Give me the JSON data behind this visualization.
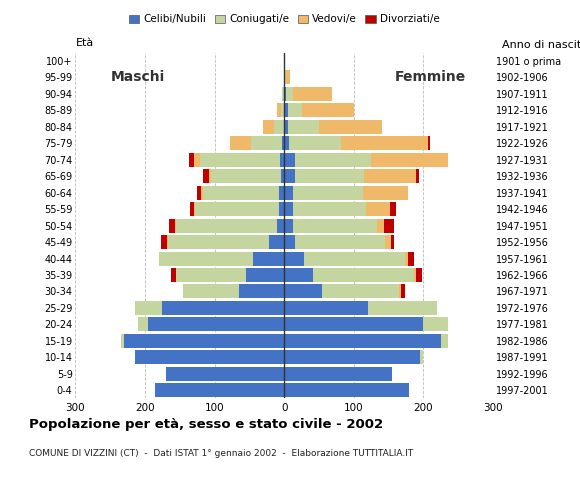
{
  "age_groups": [
    "0-4",
    "5-9",
    "10-14",
    "15-19",
    "20-24",
    "25-29",
    "30-34",
    "35-39",
    "40-44",
    "45-49",
    "50-54",
    "55-59",
    "60-64",
    "65-69",
    "70-74",
    "75-79",
    "80-84",
    "85-89",
    "90-94",
    "95-99",
    "100+"
  ],
  "birth_years": [
    "1997-2001",
    "1992-1996",
    "1987-1991",
    "1982-1986",
    "1977-1981",
    "1972-1976",
    "1967-1971",
    "1962-1966",
    "1957-1961",
    "1952-1956",
    "1947-1951",
    "1942-1946",
    "1937-1941",
    "1932-1936",
    "1927-1931",
    "1922-1926",
    "1917-1921",
    "1912-1916",
    "1907-1911",
    "1902-1906",
    "1901 o prima"
  ],
  "males": {
    "celibe": [
      185,
      170,
      215,
      230,
      195,
      175,
      65,
      55,
      45,
      22,
      10,
      8,
      7,
      5,
      6,
      3,
      0,
      0,
      0,
      0,
      0
    ],
    "coniugato": [
      0,
      0,
      0,
      5,
      15,
      40,
      80,
      100,
      135,
      145,
      145,
      120,
      110,
      100,
      115,
      45,
      15,
      5,
      3,
      0,
      0
    ],
    "vedovo": [
      0,
      0,
      0,
      0,
      0,
      0,
      0,
      0,
      0,
      2,
      2,
      2,
      3,
      3,
      8,
      30,
      15,
      5,
      0,
      0,
      0
    ],
    "divorziato": [
      0,
      0,
      0,
      0,
      0,
      0,
      0,
      8,
      0,
      8,
      8,
      5,
      5,
      8,
      8,
      0,
      0,
      0,
      0,
      0,
      0
    ]
  },
  "females": {
    "nubile": [
      180,
      155,
      195,
      225,
      200,
      120,
      55,
      42,
      28,
      15,
      13,
      12,
      13,
      15,
      15,
      7,
      5,
      5,
      3,
      0,
      0
    ],
    "coniugata": [
      0,
      0,
      5,
      10,
      35,
      100,
      110,
      145,
      145,
      130,
      120,
      105,
      100,
      100,
      110,
      75,
      45,
      20,
      10,
      3,
      0
    ],
    "vedova": [
      0,
      0,
      0,
      0,
      0,
      0,
      3,
      3,
      5,
      8,
      10,
      35,
      65,
      75,
      110,
      125,
      90,
      75,
      55,
      5,
      0
    ],
    "divorziata": [
      0,
      0,
      0,
      0,
      0,
      0,
      5,
      8,
      8,
      5,
      15,
      8,
      0,
      3,
      0,
      3,
      0,
      0,
      0,
      0,
      0
    ]
  },
  "colors": {
    "celibe_nubile": "#4472c4",
    "coniugato": "#c5d5a0",
    "vedovo": "#f0b96a",
    "divorziato": "#c00000"
  },
  "xlim": 300,
  "title": "Popolazione per età, sesso e stato civile - 2002",
  "subtitle": "COMUNE DI VIZZINI (CT)  -  Dati ISTAT 1° gennaio 2002  -  Elaborazione TUTTITALIA.IT",
  "legend_labels": [
    "Celibi/Nubili",
    "Coniugati/e",
    "Vedovi/e",
    "Divorziati/e"
  ],
  "background_color": "#ffffff",
  "bar_height": 0.85
}
